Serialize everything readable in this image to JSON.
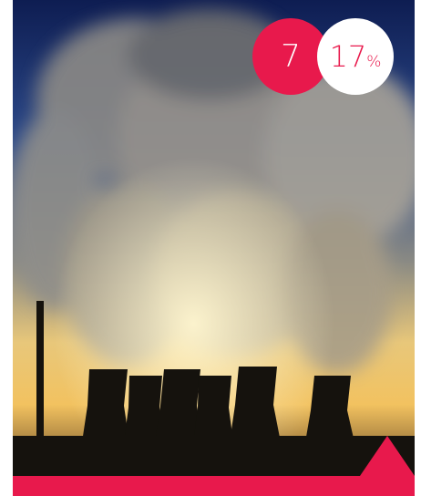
{
  "badges": {
    "rank": "7",
    "percent": {
      "value": "17",
      "unit": "%"
    }
  }
}
